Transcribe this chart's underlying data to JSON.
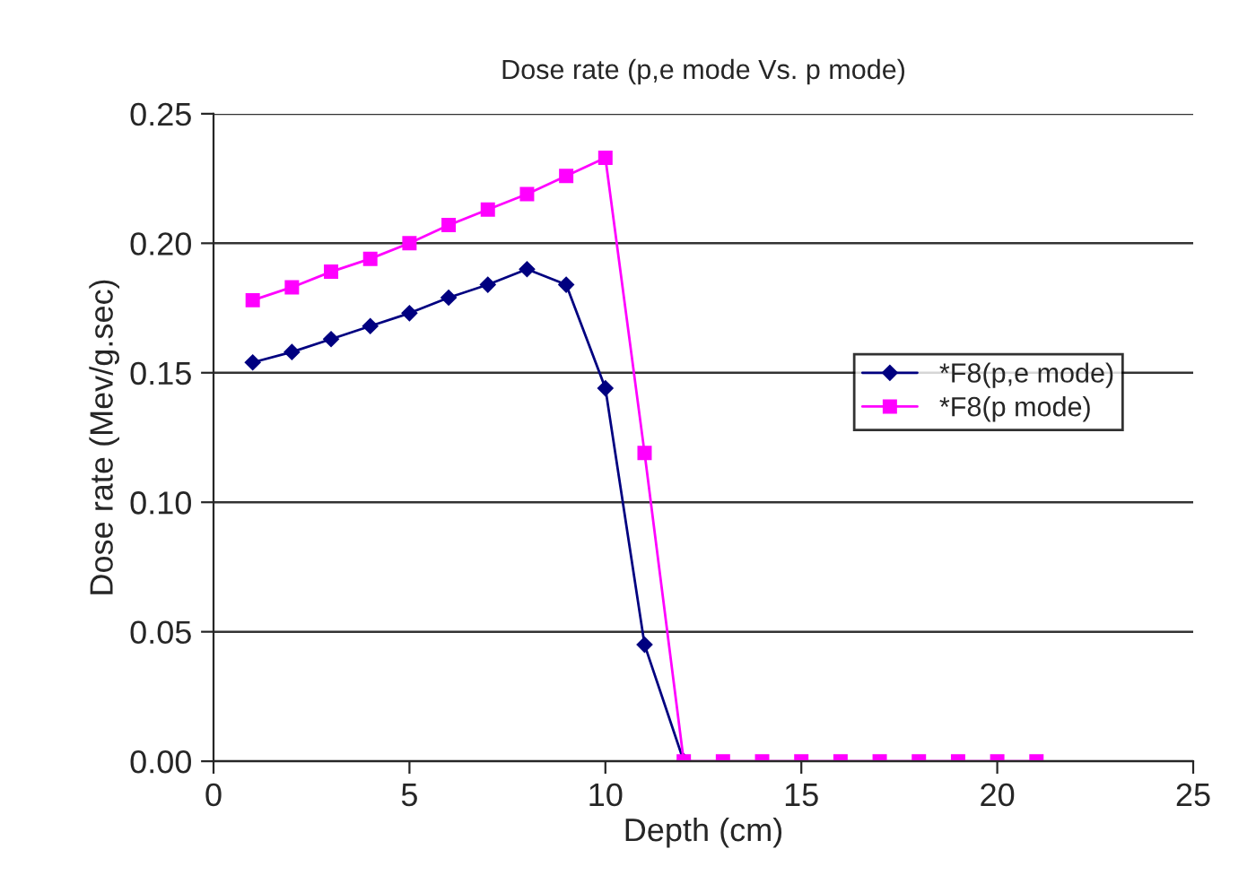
{
  "chart_data": {
    "type": "line",
    "title": "Dose rate (p,e mode Vs. p mode)",
    "xlabel": "Depth (cm)",
    "ylabel": "Dose rate (Mev/g.sec)",
    "x": [
      1,
      2,
      3,
      4,
      5,
      6,
      7,
      8,
      9,
      10,
      11,
      12,
      13,
      14,
      15,
      16,
      17,
      18,
      19,
      20,
      21
    ],
    "series": [
      {
        "name": "*F8(p,e mode)",
        "color": "#000080",
        "marker": "diamond",
        "values": [
          0.154,
          0.158,
          0.163,
          0.168,
          0.173,
          0.179,
          0.184,
          0.19,
          0.184,
          0.144,
          0.045,
          0,
          null,
          null,
          null,
          null,
          null,
          null,
          null,
          null,
          null
        ]
      },
      {
        "name": "*F8(p mode)",
        "color": "#ff00ff",
        "marker": "square",
        "values": [
          0.178,
          0.183,
          0.189,
          0.194,
          0.2,
          0.207,
          0.213,
          0.219,
          0.226,
          0.233,
          0.119,
          0,
          0,
          0,
          0,
          0,
          0,
          0,
          0,
          0,
          0
        ]
      }
    ],
    "xlim": [
      0,
      25
    ],
    "xticks": [
      0,
      5,
      10,
      15,
      20,
      25
    ],
    "ylim": [
      0,
      0.25
    ],
    "yticks": [
      {
        "value": 0,
        "label": "0.00"
      },
      {
        "value": 0.05,
        "label": "0.05"
      },
      {
        "value": 0.1,
        "label": "0.10"
      },
      {
        "value": 0.15,
        "label": "0.15"
      },
      {
        "value": 0.2,
        "label": "0.20"
      },
      {
        "value": 0.25,
        "label": "0.25"
      }
    ],
    "grid": "y",
    "legend": "right",
    "line_style": "solid"
  }
}
